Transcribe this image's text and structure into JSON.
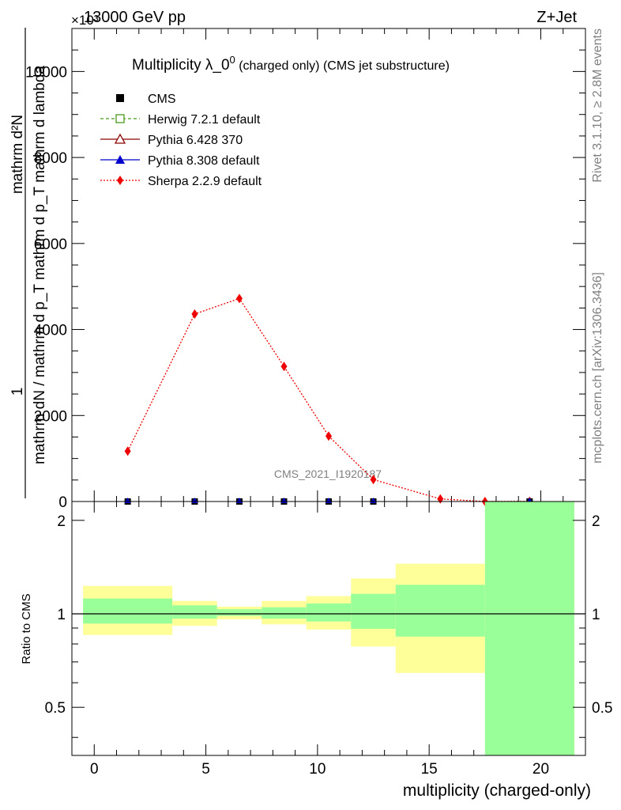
{
  "header": {
    "left": "13000 GeV pp",
    "right": "Z+Jet",
    "exponent": "×10³"
  },
  "side_text": {
    "rivet": "Rivet 3.1.10, ≥ 2.8M events",
    "mcplots": "mcplots.cern.ch [arXiv:1306.3436]"
  },
  "main_panel": {
    "title_main": "Multiplicity λ_0",
    "title_sup": "0",
    "title_suffix": " (charged only) (CMS jet substructure)",
    "ylabel_top_1": "1",
    "ylabel_num": "mathrm d²N",
    "ylabel_den": "mathrm dN / mathrm d p_T mathrm d p_T mathrm d lambda",
    "watermark": "CMS_2021_I1920187",
    "legend": [
      {
        "label": "CMS",
        "color": "#000000",
        "marker": "filled-square",
        "line": "none"
      },
      {
        "label": "Herwig 7.2.1 default",
        "color": "#4a9a1e",
        "marker": "open-square",
        "line": "dashed"
      },
      {
        "label": "Pythia 6.428 370",
        "color": "#8b0000",
        "marker": "open-triangle",
        "line": "solid"
      },
      {
        "label": "Pythia 8.308 default",
        "color": "#0000cc",
        "marker": "filled-triangle",
        "line": "solid"
      },
      {
        "label": "Sherpa 2.2.9 default",
        "color": "#ee0000",
        "marker": "diamond",
        "line": "dotted"
      }
    ],
    "yticks": [
      "0",
      "2000",
      "4000",
      "6000",
      "8000",
      "10000"
    ]
  },
  "ratio_panel": {
    "ylabel": "Ratio to CMS",
    "yticks": [
      "0.5",
      "1",
      "2"
    ],
    "xticks": [
      "0",
      "5",
      "10",
      "15",
      "20"
    ],
    "xlabel": "multiplicity (charged-only)"
  },
  "chart_data": [
    {
      "type": "line",
      "xlim": [
        -1,
        22
      ],
      "ylim": [
        0,
        11000
      ],
      "series": [
        {
          "name": "Sherpa 2.2.9 default",
          "x": [
            1.5,
            4.5,
            6.5,
            8.5,
            10.5,
            12.5,
            15.5,
            17.5,
            19.5
          ],
          "y": [
            1170,
            4360,
            4720,
            3140,
            1520,
            510,
            60,
            0,
            5
          ]
        },
        {
          "name": "CMS",
          "x": [
            1.5,
            4.5,
            6.5,
            8.5,
            10.5,
            12.5,
            19.5
          ],
          "y": [
            0,
            0,
            0,
            0,
            0,
            0,
            0
          ]
        }
      ]
    },
    {
      "type": "area",
      "scale": "log",
      "ylim": [
        0.35,
        2.3
      ],
      "reference_line": 1,
      "bands": [
        {
          "x0": -0.5,
          "x1": 3.5,
          "green": [
            0.93,
            1.12
          ],
          "yellow": [
            0.855,
            1.23
          ]
        },
        {
          "x0": 3.5,
          "x1": 5.5,
          "green": [
            0.965,
            1.065
          ],
          "yellow": [
            0.915,
            1.1
          ]
        },
        {
          "x0": 5.5,
          "x1": 7.5,
          "green": [
            0.985,
            1.035
          ],
          "yellow": [
            0.96,
            1.055
          ]
        },
        {
          "x0": 7.5,
          "x1": 9.5,
          "green": [
            0.965,
            1.05
          ],
          "yellow": [
            0.925,
            1.1
          ]
        },
        {
          "x0": 9.5,
          "x1": 11.5,
          "green": [
            0.945,
            1.08
          ],
          "yellow": [
            0.89,
            1.14
          ]
        },
        {
          "x0": 11.5,
          "x1": 13.5,
          "green": [
            0.895,
            1.16
          ],
          "yellow": [
            0.785,
            1.3
          ]
        },
        {
          "x0": 13.5,
          "x1": 17.5,
          "green": [
            0.845,
            1.24
          ],
          "yellow": [
            0.645,
            1.45
          ]
        },
        {
          "x0": 17.5,
          "x1": 21.5,
          "green": [
            0.35,
            2.3
          ],
          "yellow": [
            0.35,
            2.3
          ]
        }
      ]
    }
  ]
}
